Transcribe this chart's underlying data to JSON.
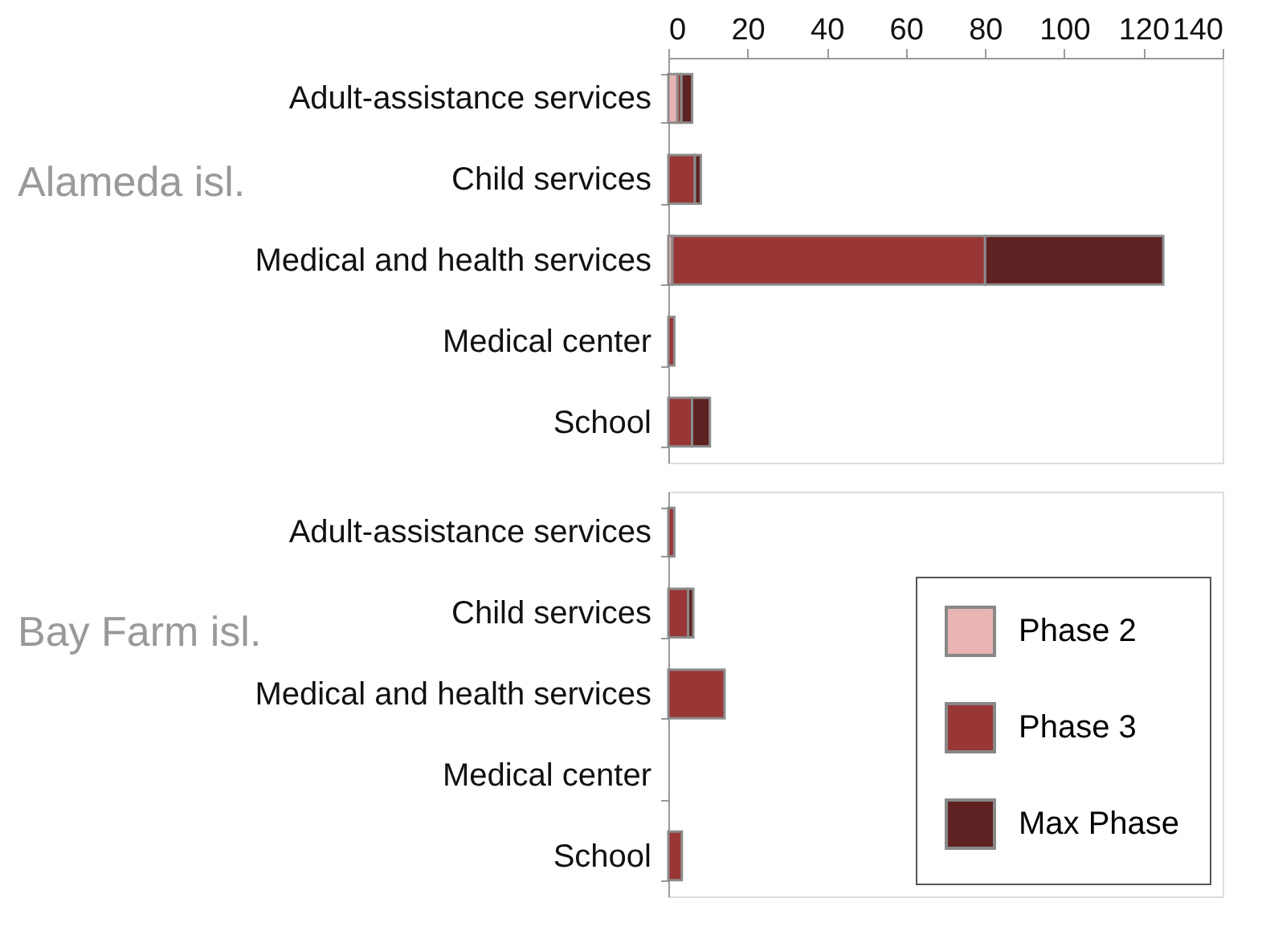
{
  "chart_data": [
    {
      "type": "bar",
      "orientation": "horizontal",
      "stacked": true,
      "title": "Alameda isl.",
      "categories": [
        "Adult-assistance services",
        "Child services",
        "Medical and health services",
        "Medical center",
        "School"
      ],
      "series": [
        {
          "color": "#e8b4b4",
          "values": [
            2.3,
            null,
            1,
            null,
            null
          ]
        },
        {
          "color": "#993636",
          "values": [
            1,
            6.7,
            79,
            1.5,
            6
          ]
        },
        {
          "color": "#5e2222",
          "values": [
            2.7,
            1.5,
            45,
            null,
            4.5
          ]
        }
      ],
      "xlim": [
        0,
        140
      ],
      "xticks": [
        0,
        20,
        40,
        60,
        80,
        100,
        120,
        140
      ]
    },
    {
      "type": "bar",
      "orientation": "horizontal",
      "stacked": true,
      "title": "Bay Farm isl.",
      "categories": [
        "Adult-assistance services",
        "Child services",
        "Medical and health services",
        "Medical center",
        "School"
      ],
      "series": [
        {
          "name": "Phase 2",
          "color": "#e8b4b4",
          "values": [
            null,
            null,
            null,
            null,
            null
          ]
        },
        {
          "name": "Phase 3",
          "color": "#993636",
          "values": [
            1.5,
            5,
            14.2,
            null,
            3.4
          ]
        },
        {
          "name": "Max Phase",
          "color": "#5e2222",
          "values": [
            null,
            1.3,
            null,
            null,
            null
          ]
        }
      ],
      "xlim": [
        0,
        140
      ],
      "tick_labels": "y",
      "legend": "bottom right"
    }
  ]
}
